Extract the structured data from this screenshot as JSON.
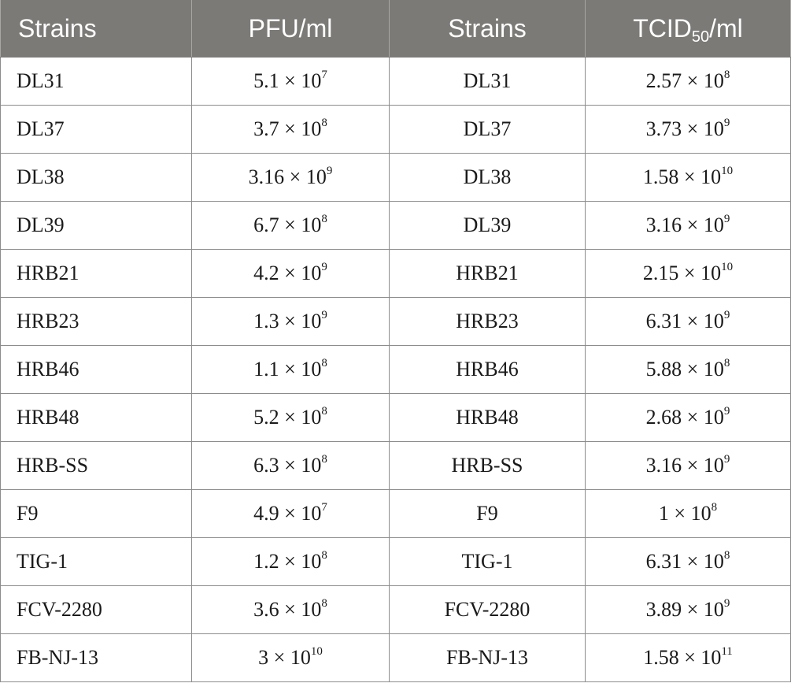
{
  "header": {
    "col1": "Strains",
    "col2": "PFU/ml",
    "col3": "Strains",
    "col4_main": "TCID",
    "col4_sub": "50",
    "col4_unit": "/ml"
  },
  "times": "×",
  "rows": [
    {
      "strain": "DL31",
      "pfu": {
        "m": "5.1",
        "b": "10",
        "e": "7"
      },
      "strain2": "DL31",
      "tcid": {
        "m": "2.57",
        "b": "10",
        "e": "8"
      }
    },
    {
      "strain": "DL37",
      "pfu": {
        "m": "3.7",
        "b": "10",
        "e": "8"
      },
      "strain2": "DL37",
      "tcid": {
        "m": "3.73",
        "b": "10",
        "e": "9"
      }
    },
    {
      "strain": "DL38",
      "pfu": {
        "m": "3.16",
        "b": "10",
        "e": "9"
      },
      "strain2": "DL38",
      "tcid": {
        "m": "1.58",
        "b": "10",
        "e": "10"
      }
    },
    {
      "strain": "DL39",
      "pfu": {
        "m": "6.7",
        "b": "10",
        "e": "8"
      },
      "strain2": "DL39",
      "tcid": {
        "m": "3.16",
        "b": "10",
        "e": "9"
      }
    },
    {
      "strain": "HRB21",
      "pfu": {
        "m": "4.2",
        "b": "10",
        "e": "9"
      },
      "strain2": "HRB21",
      "tcid": {
        "m": "2.15",
        "b": "10",
        "e": "10"
      }
    },
    {
      "strain": "HRB23",
      "pfu": {
        "m": "1.3",
        "b": "10",
        "e": "9"
      },
      "strain2": "HRB23",
      "tcid": {
        "m": "6.31",
        "b": "10",
        "e": "9"
      }
    },
    {
      "strain": "HRB46",
      "pfu": {
        "m": "1.1",
        "b": "10",
        "e": "8"
      },
      "strain2": "HRB46",
      "tcid": {
        "m": "5.88",
        "b": "10",
        "e": "8"
      }
    },
    {
      "strain": "HRB48",
      "pfu": {
        "m": "5.2",
        "b": "10",
        "e": "8"
      },
      "strain2": "HRB48",
      "tcid": {
        "m": "2.68",
        "b": "10",
        "e": "9"
      }
    },
    {
      "strain": "HRB-SS",
      "pfu": {
        "m": "6.3",
        "b": "10",
        "e": "8"
      },
      "strain2": "HRB-SS",
      "tcid": {
        "m": "3.16",
        "b": "10",
        "e": "9"
      }
    },
    {
      "strain": "F9",
      "pfu": {
        "m": "4.9",
        "b": "10",
        "e": "7"
      },
      "strain2": "F9",
      "tcid": {
        "m": "1",
        "b": "10",
        "e": "8"
      }
    },
    {
      "strain": "TIG-1",
      "pfu": {
        "m": "1.2",
        "b": "10",
        "e": "8"
      },
      "strain2": "TIG-1",
      "tcid": {
        "m": "6.31",
        "b": "10",
        "e": "8"
      }
    },
    {
      "strain": "FCV-2280",
      "pfu": {
        "m": "3.6",
        "b": "10",
        "e": "8"
      },
      "strain2": "FCV-2280",
      "tcid": {
        "m": "3.89",
        "b": "10",
        "e": "9"
      }
    },
    {
      "strain": "FB-NJ-13",
      "pfu": {
        "m": "3",
        "b": "10",
        "e": "10"
      },
      "strain2": "FB-NJ-13",
      "tcid": {
        "m": "1.58",
        "b": "10",
        "e": "11"
      }
    }
  ]
}
